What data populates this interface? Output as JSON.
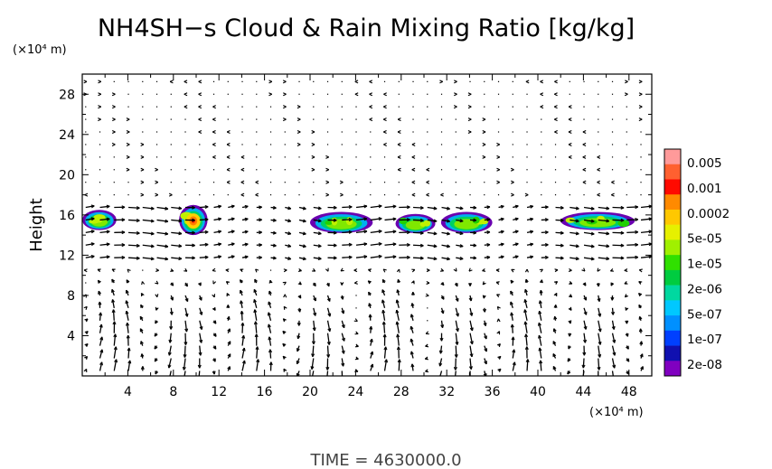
{
  "chart_data": {
    "type": "heatmap",
    "title": "NH4SH−s Cloud & Rain Mixing Ratio [kg/kg]",
    "ylabel": "Height",
    "x_unit_label": "(×10⁴ m)",
    "y_unit_label": "(×10⁴ m)",
    "xlim": [
      0,
      50
    ],
    "ylim": [
      0,
      30
    ],
    "x_ticks": [
      4,
      8,
      12,
      16,
      20,
      24,
      28,
      32,
      36,
      40,
      44,
      48
    ],
    "y_ticks": [
      4,
      8,
      12,
      16,
      20,
      24,
      28
    ],
    "colorbar": {
      "labels": [
        "0.005",
        "0.001",
        "0.0002",
        "5e-05",
        "1e-05",
        "2e-06",
        "5e-07",
        "1e-07",
        "2e-08"
      ],
      "colors": [
        "#ff9a9a",
        "#ff6030",
        "#ff0a00",
        "#ff8a00",
        "#ffc800",
        "#e6f000",
        "#a0f000",
        "#30e000",
        "#00cc40",
        "#00d8a0",
        "#00c8ff",
        "#0090ff",
        "#0040ff",
        "#1010b0",
        "#8000c0"
      ]
    },
    "cloud_regions": [
      {
        "x": [
          0,
          3
        ],
        "z": [
          14.5,
          16.5
        ]
      },
      {
        "x": [
          8.5,
          11
        ],
        "z": [
          14,
          17
        ]
      },
      {
        "x": [
          20,
          25.5
        ],
        "z": [
          14.2,
          16.3
        ]
      },
      {
        "x": [
          27.5,
          31
        ],
        "z": [
          14.2,
          16.1
        ]
      },
      {
        "x": [
          31.5,
          36
        ],
        "z": [
          14.2,
          16.3
        ]
      },
      {
        "x": [
          42,
          48.5
        ],
        "z": [
          14.5,
          16.3
        ]
      }
    ],
    "vectors": "wind field arrows"
  },
  "footer": {
    "time_label": "TIME  =  4630000.0"
  }
}
